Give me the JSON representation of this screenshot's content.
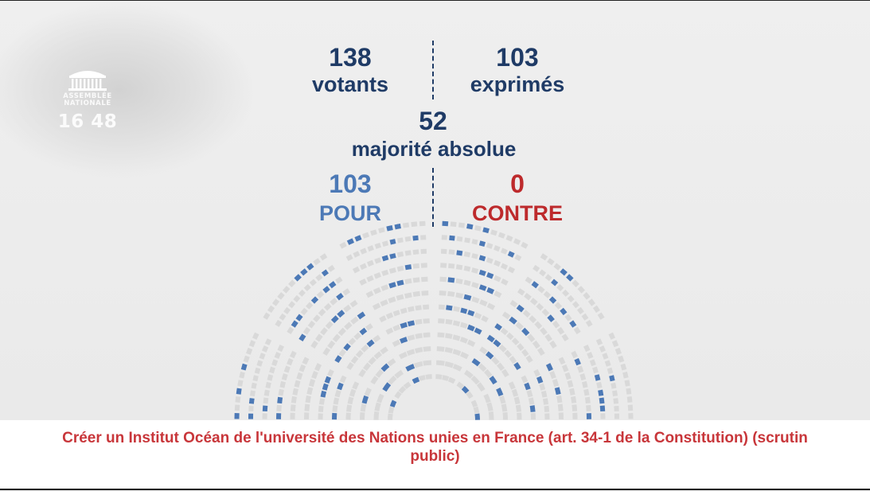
{
  "logo": {
    "icon": "assemblee-building-icon",
    "line1": "ASSEMBLÉE",
    "line2": "NATIONALE",
    "clock": "16 48"
  },
  "results": {
    "votants": {
      "value": "138",
      "label": "votants"
    },
    "exprimes": {
      "value": "103",
      "label": "exprimés"
    },
    "majorite": {
      "value": "52",
      "label": "majorité absolue"
    },
    "pour": {
      "value": "103",
      "label": "POUR"
    },
    "contre": {
      "value": "0",
      "label": "CONTRE"
    }
  },
  "colors": {
    "navy": "#1f3b66",
    "pour": "#4c79b6",
    "contre": "#bd2a2c",
    "seat_empty": "#d9d9d9",
    "caption": "#c8363a"
  },
  "caption": {
    "text": "Créer un Institut Océan de l'université des Nations unies en France (art. 34-1 de la Constitution) (scrutin public)"
  }
}
